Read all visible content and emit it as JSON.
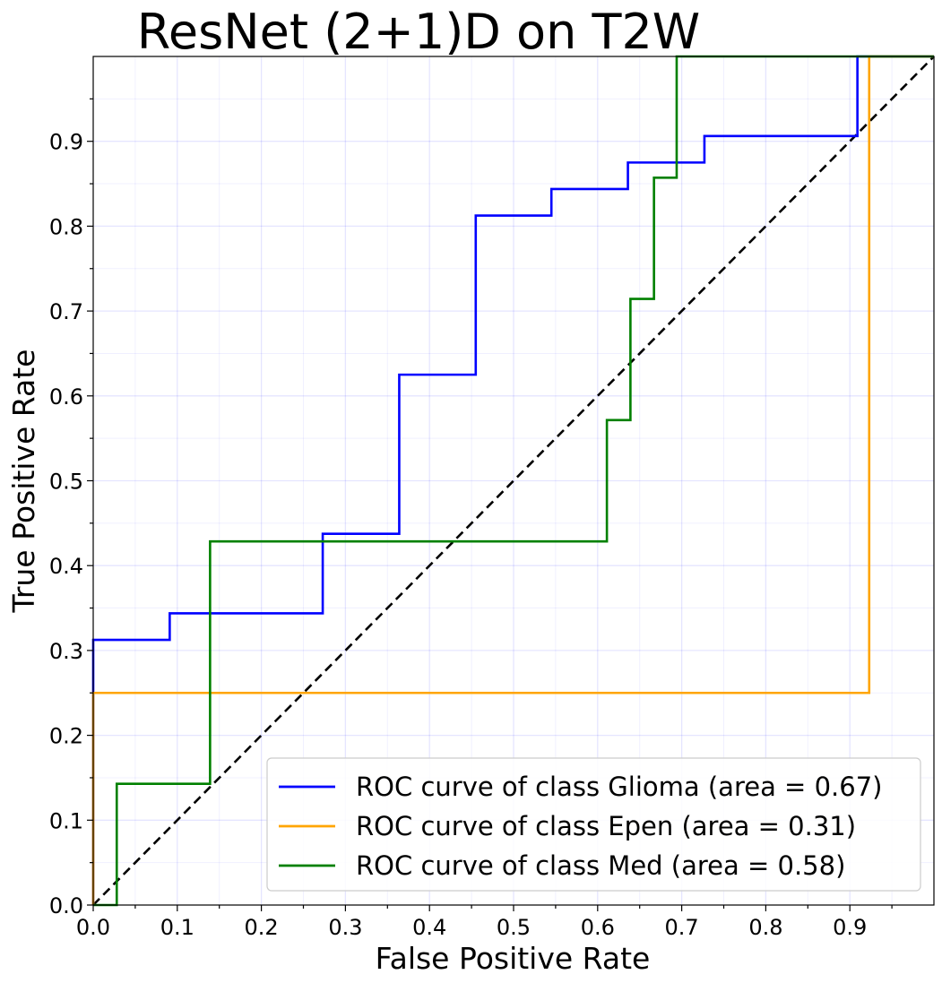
{
  "chart_data": {
    "type": "line",
    "title": "ResNet (2+1)D on T2W",
    "xlabel": "False Positive Rate",
    "ylabel": "True Positive Rate",
    "xlim": [
      0,
      1
    ],
    "ylim": [
      0,
      1
    ],
    "x_ticks": [
      "0.0",
      "0.1",
      "0.2",
      "0.3",
      "0.4",
      "0.5",
      "0.6",
      "0.7",
      "0.8",
      "0.9"
    ],
    "y_ticks": [
      "0.0",
      "0.1",
      "0.2",
      "0.3",
      "0.4",
      "0.5",
      "0.6",
      "0.7",
      "0.8",
      "0.9"
    ],
    "grid": true,
    "legend_position": "lower-right",
    "series": [
      {
        "name": "ROC curve of class Glioma (area = 0.67)",
        "color": "#0000ff",
        "x": [
          0,
          0,
          0.091,
          0.091,
          0.273,
          0.273,
          0.364,
          0.364,
          0.455,
          0.455,
          0.545,
          0.545,
          0.636,
          0.636,
          0.727,
          0.727,
          0.909,
          0.909,
          1.0
        ],
        "y": [
          0,
          0.3125,
          0.3125,
          0.34375,
          0.34375,
          0.4375,
          0.4375,
          0.625,
          0.625,
          0.8125,
          0.8125,
          0.84375,
          0.84375,
          0.875,
          0.875,
          0.90625,
          0.90625,
          1.0,
          1.0
        ]
      },
      {
        "name": "ROC curve of class Epen (area = 0.31)",
        "color": "#ffa500",
        "x": [
          0,
          0,
          0.923,
          0.923,
          1.0
        ],
        "y": [
          0,
          0.25,
          0.25,
          1.0,
          1.0
        ]
      },
      {
        "name": "ROC curve of class Med (area = 0.58)",
        "color": "#008000",
        "x": [
          0,
          0.028,
          0.028,
          0.139,
          0.139,
          0.611,
          0.611,
          0.639,
          0.639,
          0.667,
          0.667,
          0.694,
          0.694,
          1.0
        ],
        "y": [
          0,
          0,
          0.142857,
          0.142857,
          0.428571,
          0.428571,
          0.571429,
          0.571429,
          0.714286,
          0.714286,
          0.857143,
          0.857143,
          1.0,
          1.0
        ]
      }
    ],
    "reference_line": {
      "x": [
        0,
        1
      ],
      "y": [
        0,
        1
      ],
      "color": "#000000",
      "style": "dashed"
    }
  }
}
